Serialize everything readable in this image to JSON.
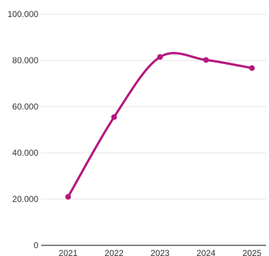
{
  "chart_data": {
    "type": "line",
    "categories": [
      "2021",
      "2022",
      "2023",
      "2024",
      "2025"
    ],
    "series": [
      {
        "values": [
          21000,
          55500,
          81500,
          80200,
          76700
        ],
        "color": "#b5177f"
      }
    ],
    "y_ticks": [
      {
        "value": 0,
        "label": "0"
      },
      {
        "value": 20000,
        "label": "20.000"
      },
      {
        "value": 40000,
        "label": "40.000"
      },
      {
        "value": 60000,
        "label": "60.000"
      },
      {
        "value": 80000,
        "label": "80.000"
      },
      {
        "value": 100000,
        "label": "100.000"
      }
    ],
    "ylim": [
      0,
      100000
    ],
    "grid": true,
    "smooth": true,
    "title": "",
    "xlabel": "",
    "ylabel": ""
  },
  "colors": {
    "line": "#b5177f",
    "grid": "#e6e6e6",
    "axis": "#333333",
    "text": "#333333"
  }
}
